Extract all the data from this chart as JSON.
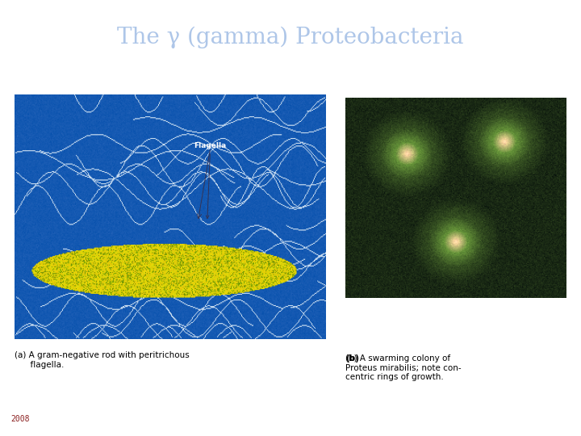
{
  "title": "The γ (gamma) Proteobacteria",
  "title_color": "#aec6e8",
  "title_fontsize": 20,
  "title_bg": "#000000",
  "top_bar_color": "#eedc00",
  "main_bg": "#ffffff",
  "bottom_bar_color": "#000000",
  "year_text": "2008",
  "year_color": "#8b2020",
  "year_fontsize": 7,
  "caption_a": "(a) A gram-negative rod with peritrichous\n      flagella.",
  "caption_b": "(b) A swarming colony of\nProteus mirabilis; note con-\ncentric rings of growth.",
  "caption_fontsize": 7.5,
  "caption_color": "#000000",
  "separator_color": "#bbbbbb"
}
